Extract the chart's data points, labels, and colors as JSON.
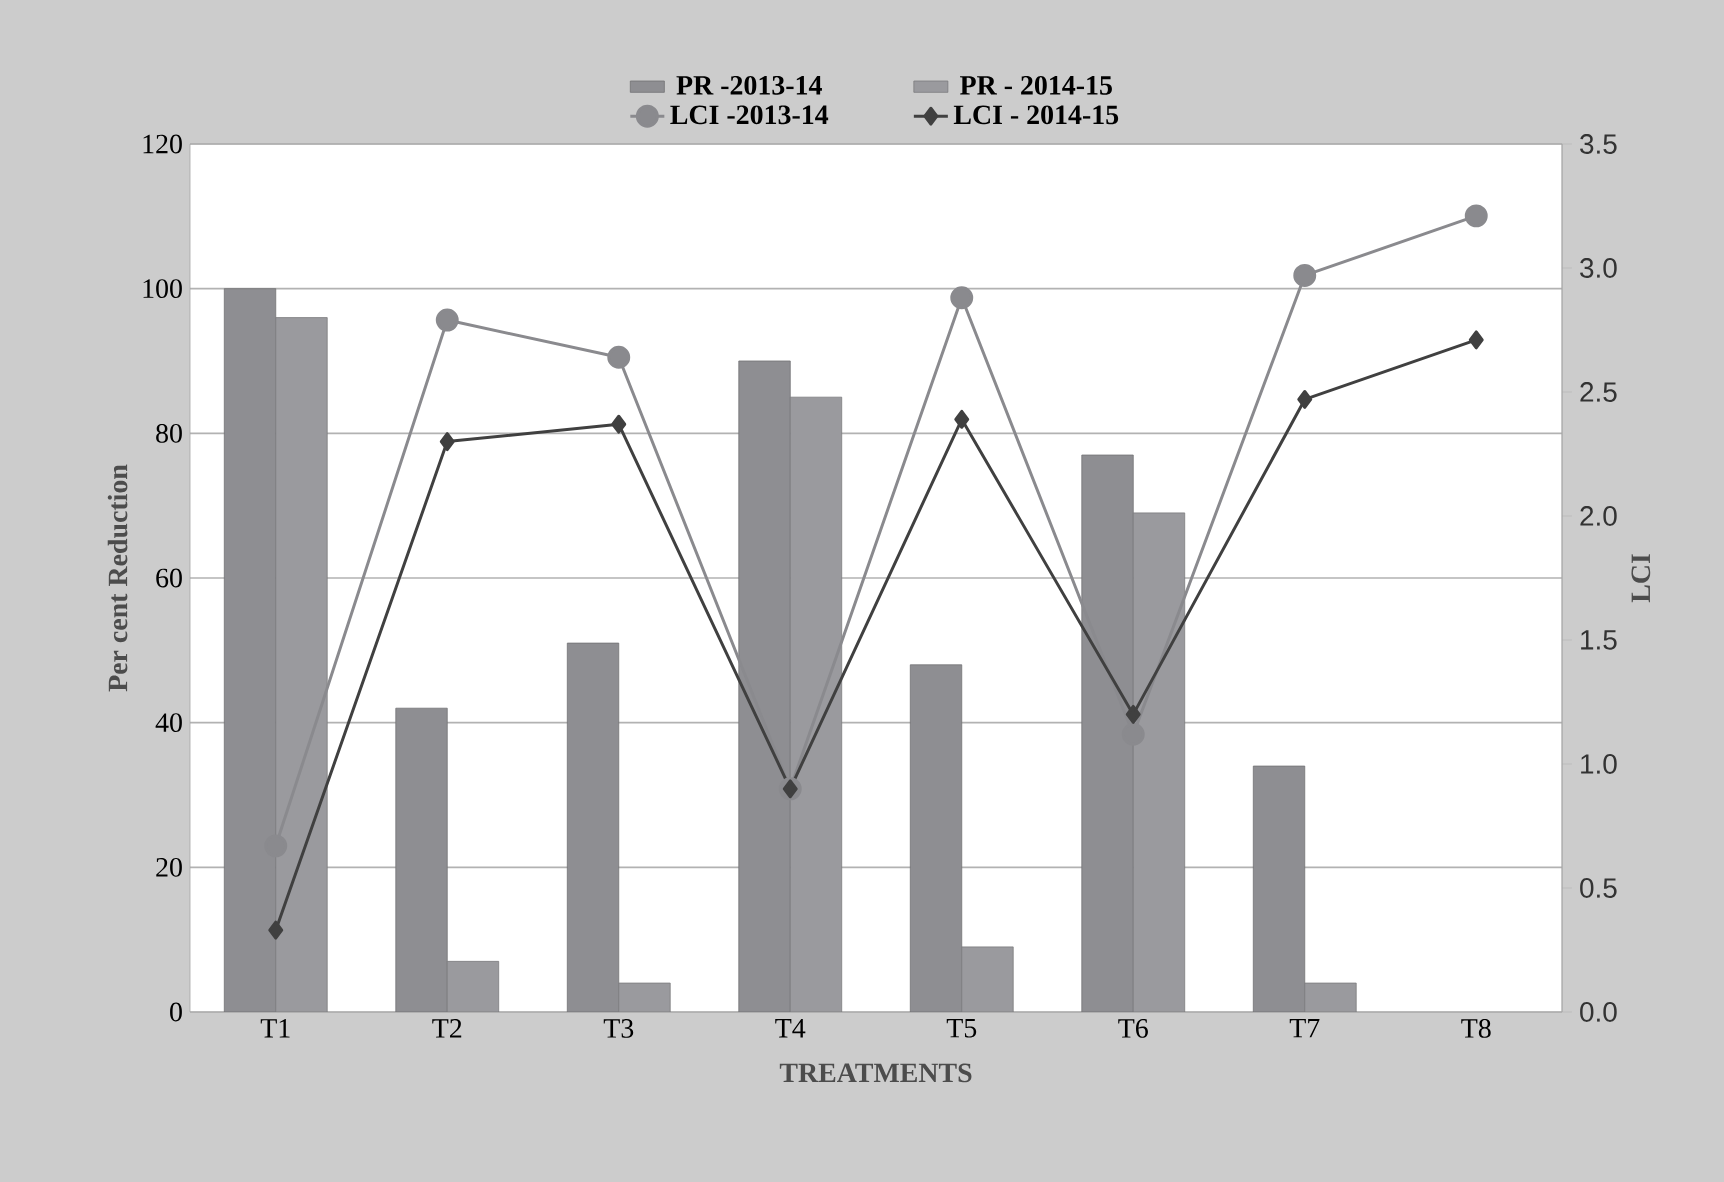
{
  "chart_data": {
    "type": "bar",
    "categories": [
      "T1",
      "T2",
      "T3",
      "T4",
      "T5",
      "T6",
      "T7",
      "T8"
    ],
    "series": [
      {
        "name": "PR -2013-14",
        "color": "#8e8e92",
        "values": [
          100,
          42,
          51,
          90,
          48,
          77,
          34,
          null
        ]
      },
      {
        "name": "PR - 2014-15",
        "color": "#9a9a9e",
        "values": [
          96,
          7,
          4,
          85,
          9,
          69,
          4,
          null
        ]
      },
      {
        "name": "LCI -2013-14",
        "type": "line",
        "axis": "y2",
        "marker": "circle",
        "color": "#8a8a8e",
        "values": [
          0.67,
          2.79,
          2.64,
          0.9,
          2.88,
          1.12,
          2.97,
          3.21
        ]
      },
      {
        "name": "LCI - 2014-15",
        "type": "line",
        "axis": "y2",
        "marker": "diamond",
        "color": "#404040",
        "values": [
          0.33,
          2.3,
          2.37,
          0.9,
          2.39,
          1.2,
          2.47,
          2.71
        ]
      }
    ],
    "xlabel": "TREATMENTS",
    "ylabel": "Per cent Reduction",
    "y2label": "LCI",
    "ylim": [
      0,
      120
    ],
    "yticks": [
      0,
      20,
      40,
      60,
      80,
      100,
      120
    ],
    "y2lim": [
      0,
      3.5
    ],
    "y2ticks": [
      {
        "value": 0,
        "label": "0.0"
      },
      {
        "value": 0.5,
        "label": "0.5"
      },
      {
        "value": 1,
        "label": "1.0"
      },
      {
        "value": 1.5,
        "label": "1.5"
      },
      {
        "value": 2,
        "label": "2.0"
      },
      {
        "value": 2.5,
        "label": "2.5"
      },
      {
        "value": 3,
        "label": "3.0"
      },
      {
        "value": 3.5,
        "label": "3.5"
      }
    ],
    "grid": "y",
    "legend": "top"
  }
}
